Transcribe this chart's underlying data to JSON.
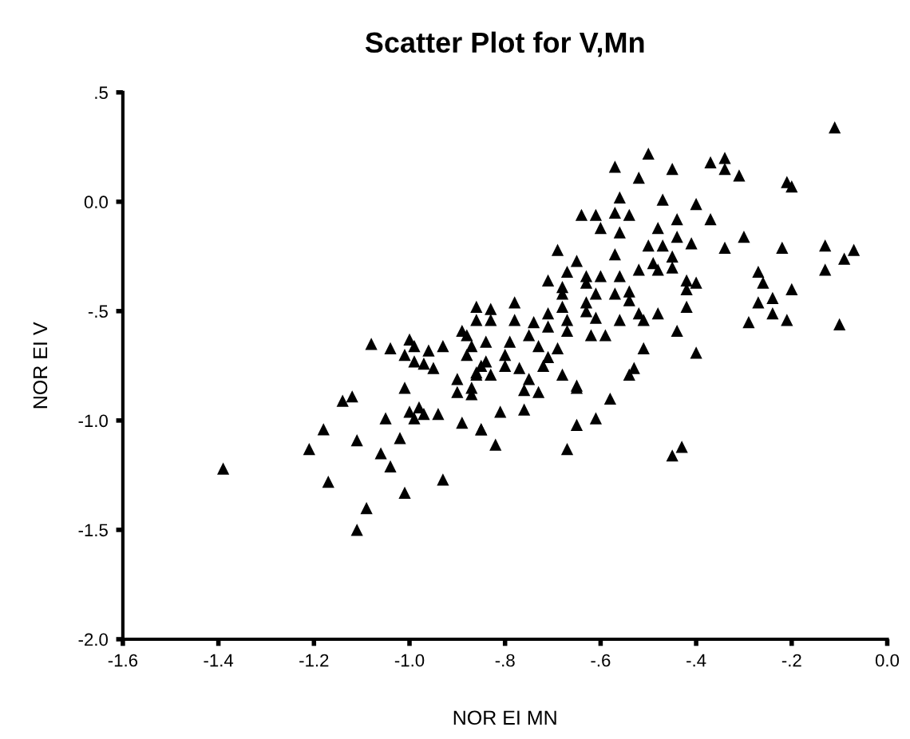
{
  "chart_data": {
    "type": "scatter",
    "title": "Scatter Plot for V,Mn",
    "xlabel": "NOR EI MN",
    "ylabel": "NOR EI V",
    "xlim": [
      -1.6,
      0.0
    ],
    "ylim": [
      -2.0,
      0.5
    ],
    "xticks": [
      {
        "value": -1.6,
        "label": "-1.6"
      },
      {
        "value": -1.4,
        "label": "-1.4"
      },
      {
        "value": -1.2,
        "label": "-1.2"
      },
      {
        "value": -1.0,
        "label": "-1.0"
      },
      {
        "value": -0.8,
        "label": "-.8"
      },
      {
        "value": -0.6,
        "label": "-.6"
      },
      {
        "value": -0.4,
        "label": "-.4"
      },
      {
        "value": -0.2,
        "label": "-.2"
      },
      {
        "value": 0.0,
        "label": "0.0"
      }
    ],
    "yticks": [
      {
        "value": -2.0,
        "label": "-2.0"
      },
      {
        "value": -1.5,
        "label": "-1.5"
      },
      {
        "value": -1.0,
        "label": "-1.0"
      },
      {
        "value": -0.5,
        "label": "-.5"
      },
      {
        "value": 0.0,
        "label": "0.0"
      },
      {
        "value": 0.5,
        "label": ".5"
      }
    ],
    "marker": "triangle",
    "grid": false,
    "legend": false,
    "series": [
      {
        "color": "#000000",
        "x": [
          -0.11,
          -0.5,
          -0.57,
          -0.45,
          -0.37,
          -0.34,
          -0.34,
          -0.31,
          -0.52,
          -0.21,
          -0.2,
          -0.56,
          -0.47,
          -0.4,
          -0.64,
          -0.61,
          -0.57,
          -0.54,
          -0.37,
          -0.44,
          -0.6,
          -0.56,
          -0.48,
          -0.44,
          -0.3,
          -0.69,
          -0.57,
          -0.5,
          -0.47,
          -0.41,
          -0.34,
          -0.22,
          -0.13,
          -0.07,
          -0.09,
          -0.65,
          -0.49,
          -0.45,
          -0.52,
          -0.48,
          -0.45,
          -0.13,
          -0.27,
          -0.67,
          -0.71,
          -0.63,
          -0.6,
          -0.56,
          -0.42,
          -0.4,
          -0.26,
          -0.68,
          -0.63,
          -0.42,
          -0.2,
          -0.61,
          -0.57,
          -0.54,
          -0.68,
          -0.78,
          -0.68,
          -0.54,
          -0.63,
          -0.24,
          -0.27,
          -0.42,
          -0.83,
          -0.71,
          -0.63,
          -0.48,
          -0.52,
          -0.24,
          -0.78,
          -0.74,
          -0.67,
          -0.61,
          -0.56,
          -0.51,
          -0.29,
          -0.21,
          -0.1,
          -0.83,
          -0.71,
          -0.67,
          -0.62,
          -0.59,
          -0.44,
          -0.75,
          -0.79,
          -0.73,
          -0.69,
          -0.51,
          -0.4,
          -0.8,
          -0.71,
          -0.84,
          -0.8,
          -0.72,
          -0.53,
          -0.54,
          -0.68,
          -0.83,
          -0.75,
          -0.65,
          -0.65,
          -0.76,
          -0.73,
          -0.77,
          -0.58,
          -0.81,
          -0.76,
          -0.65,
          -0.61,
          -0.85,
          -0.82,
          -0.67,
          -0.43,
          -0.45,
          -1.39,
          -1.21,
          -1.18,
          -1.14,
          -1.12,
          -1.17,
          -1.11,
          -1.11,
          -1.09,
          -1.06,
          -1.04,
          -1.05,
          -1.02,
          -1.01,
          -1.01,
          -1.0,
          -0.98,
          -0.99,
          -0.97,
          -0.94,
          -0.93,
          -0.89,
          -0.9,
          -0.9,
          -0.87,
          -0.87,
          -0.85,
          -0.86,
          -0.99,
          -0.97,
          -0.95,
          -1.08,
          -1.04,
          -1.01,
          -1.0,
          -0.99,
          -0.96,
          -0.93,
          -0.89,
          -0.88,
          -0.87,
          -0.88,
          -0.86,
          -0.86,
          -0.84,
          -0.85,
          -0.86
        ],
        "values": [
          0.34,
          0.22,
          0.16,
          0.15,
          0.18,
          0.2,
          0.15,
          0.12,
          0.11,
          0.09,
          0.07,
          0.02,
          0.01,
          -0.01,
          -0.06,
          -0.06,
          -0.05,
          -0.06,
          -0.08,
          -0.08,
          -0.12,
          -0.14,
          -0.12,
          -0.16,
          -0.16,
          -0.22,
          -0.24,
          -0.2,
          -0.2,
          -0.19,
          -0.21,
          -0.21,
          -0.2,
          -0.22,
          -0.26,
          -0.27,
          -0.28,
          -0.25,
          -0.31,
          -0.31,
          -0.3,
          -0.31,
          -0.32,
          -0.32,
          -0.36,
          -0.34,
          -0.34,
          -0.34,
          -0.36,
          -0.37,
          -0.37,
          -0.39,
          -0.37,
          -0.4,
          -0.4,
          -0.42,
          -0.42,
          -0.41,
          -0.42,
          -0.46,
          -0.48,
          -0.45,
          -0.46,
          -0.44,
          -0.46,
          -0.48,
          -0.49,
          -0.51,
          -0.5,
          -0.51,
          -0.51,
          -0.51,
          -0.54,
          -0.55,
          -0.54,
          -0.53,
          -0.54,
          -0.54,
          -0.55,
          -0.54,
          -0.56,
          -0.54,
          -0.57,
          -0.59,
          -0.61,
          -0.61,
          -0.59,
          -0.61,
          -0.64,
          -0.66,
          -0.67,
          -0.67,
          -0.69,
          -0.7,
          -0.71,
          -0.73,
          -0.75,
          -0.75,
          -0.76,
          -0.79,
          -0.79,
          -0.79,
          -0.81,
          -0.84,
          -0.85,
          -0.86,
          -0.87,
          -0.76,
          -0.9,
          -0.96,
          -0.95,
          -1.02,
          -0.99,
          -1.04,
          -1.11,
          -1.13,
          -1.12,
          -1.16,
          -1.22,
          -1.13,
          -1.04,
          -0.91,
          -0.89,
          -1.28,
          -1.09,
          -1.5,
          -1.4,
          -1.15,
          -1.21,
          -0.99,
          -1.08,
          -1.33,
          -0.85,
          -0.96,
          -0.94,
          -0.99,
          -0.97,
          -0.97,
          -1.27,
          -1.01,
          -0.81,
          -0.87,
          -0.85,
          -0.88,
          -1.04,
          -0.79,
          -0.73,
          -0.74,
          -0.76,
          -0.65,
          -0.67,
          -0.7,
          -0.63,
          -0.66,
          -0.68,
          -0.66,
          -0.59,
          -0.61,
          -0.66,
          -0.7,
          -0.48,
          -0.54,
          -0.64,
          -0.75,
          -0.78
        ]
      }
    ]
  }
}
